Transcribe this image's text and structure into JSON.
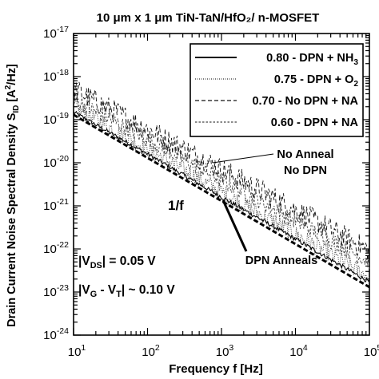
{
  "chart_data": {
    "type": "line",
    "title": "10 μm x 1 μm TiN-TaN/HfO₂/ n-MOSFET",
    "xlabel": "Frequency f [Hz]",
    "ylabel": "Drain Current Noise Spectral Density S_ID [A²/Hz]",
    "x_scale": "log",
    "y_scale": "log",
    "xlim": [
      10,
      100000
    ],
    "ylim": [
      1e-24,
      1e-17
    ],
    "x_ticks": [
      {
        "value": 10,
        "base": "10",
        "exp": "1"
      },
      {
        "value": 100,
        "base": "10",
        "exp": "2"
      },
      {
        "value": 1000,
        "base": "10",
        "exp": "3"
      },
      {
        "value": 10000,
        "base": "10",
        "exp": "4"
      },
      {
        "value": 100000,
        "base": "10",
        "exp": "5"
      }
    ],
    "y_ticks": [
      {
        "value": 1e-17,
        "base": "10",
        "exp": "-17"
      },
      {
        "value": 1e-18,
        "base": "10",
        "exp": "-18"
      },
      {
        "value": 1e-19,
        "base": "10",
        "exp": "-19"
      },
      {
        "value": 1e-20,
        "base": "10",
        "exp": "-20"
      },
      {
        "value": 1e-21,
        "base": "10",
        "exp": "-21"
      },
      {
        "value": 1e-22,
        "base": "10",
        "exp": "-22"
      },
      {
        "value": 1e-23,
        "base": "10",
        "exp": "-23"
      },
      {
        "value": 1e-24,
        "base": "10",
        "exp": "-24"
      }
    ],
    "grid": false,
    "legend_position": "top-right",
    "series": [
      {
        "name": "0.80 - DPN + NH₃",
        "style": "solid",
        "x": [
          10,
          100,
          1000,
          10000,
          100000
        ],
        "y": [
          1.5e-19,
          1.6e-20,
          1.6e-21,
          1.7e-22,
          1.7e-23
        ]
      },
      {
        "name": "0.75 - DPN + O₂",
        "style": "dotted",
        "x": [
          10,
          100,
          1000,
          10000,
          100000
        ],
        "y": [
          2e-19,
          2.1e-20,
          2.1e-21,
          2.2e-22,
          2.2e-23
        ]
      },
      {
        "name": "0.70 - No DPN + NA",
        "style": "dashed",
        "x": [
          10,
          100,
          1000,
          10000,
          100000
        ],
        "y": [
          5e-19,
          6e-20,
          7e-21,
          8e-22,
          9e-23
        ]
      },
      {
        "name": "0.60 - DPN + NA",
        "style": "fine-dashed",
        "x": [
          10,
          100,
          1000,
          10000,
          100000
        ],
        "y": [
          3e-19,
          3.5e-20,
          4e-21,
          4.5e-22,
          5e-23
        ]
      }
    ],
    "reference_line": {
      "label": "1/f",
      "x": [
        10,
        100000
      ],
      "y": [
        1.3e-19,
        1.3e-23
      ]
    },
    "annotations": {
      "no_anneal_line1": "No Anneal",
      "no_anneal_line2": "No DPN",
      "dpn_anneals": "DPN Anneals",
      "vds_label": "|V_DS| = 0.05 V",
      "vgvt_label": "|V_G - V_T| ~ 0.10 V"
    }
  }
}
